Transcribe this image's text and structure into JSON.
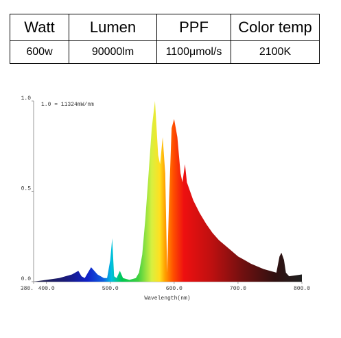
{
  "table": {
    "header": [
      "Watt",
      "Lumen",
      "PPF",
      "Color temp"
    ],
    "rows": [
      [
        "600w",
        "90000lm",
        "1100μmol/s",
        "2100K"
      ]
    ]
  },
  "chart_data": {
    "type": "area",
    "annotation": "1.0 = 11324mW/nm",
    "x_label": "Wavelength(nm)",
    "x": [
      380,
      400,
      420,
      440,
      450,
      455,
      460,
      465,
      470,
      480,
      490,
      495,
      500,
      503,
      506,
      510,
      515,
      520,
      530,
      540,
      545,
      550,
      555,
      560,
      565,
      570,
      575,
      578,
      582,
      586,
      589,
      592,
      596,
      600,
      605,
      610,
      613,
      617,
      620,
      630,
      640,
      650,
      660,
      670,
      680,
      690,
      700,
      710,
      720,
      740,
      760,
      765,
      768,
      772,
      775,
      780,
      800
    ],
    "values": [
      0,
      0.01,
      0.02,
      0.04,
      0.06,
      0.03,
      0.02,
      0.05,
      0.08,
      0.04,
      0.02,
      0.02,
      0.12,
      0.24,
      0.03,
      0.02,
      0.06,
      0.02,
      0.01,
      0.02,
      0.05,
      0.15,
      0.35,
      0.6,
      0.85,
      1.0,
      0.7,
      0.65,
      0.8,
      0.6,
      0.05,
      0.45,
      0.85,
      0.9,
      0.8,
      0.6,
      0.55,
      0.65,
      0.55,
      0.45,
      0.38,
      0.32,
      0.27,
      0.23,
      0.2,
      0.17,
      0.14,
      0.12,
      0.1,
      0.07,
      0.05,
      0.14,
      0.16,
      0.12,
      0.05,
      0.03,
      0.04
    ],
    "xlim": [
      380,
      800
    ],
    "ylim": [
      0,
      1
    ],
    "xticks": [
      {
        "value": 380,
        "label": "380."
      },
      {
        "value": 400,
        "label": "400.0"
      },
      {
        "value": 500,
        "label": "500.0"
      },
      {
        "value": 600,
        "label": "600.0"
      },
      {
        "value": 700,
        "label": "700.0"
      },
      {
        "value": 800,
        "label": "800.0"
      }
    ],
    "yticks": [
      {
        "value": 0,
        "label": "0.0"
      },
      {
        "value": 0.5,
        "label": "0.5"
      },
      {
        "value": 1,
        "label": "1.0"
      }
    ]
  }
}
